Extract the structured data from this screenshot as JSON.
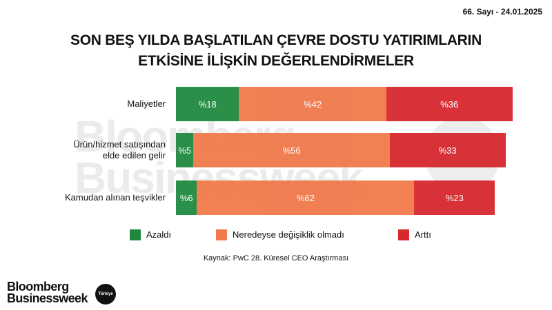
{
  "header": {
    "issue": "66. Sayı - 24.01.2025"
  },
  "chart_data": {
    "type": "stacked-bar-horizontal",
    "title": [
      "SON BEŞ YILDA BAŞLATILAN ÇEVRE DOSTU YATIRIMLARIN",
      "ETKİSİNE İLİŞKİN DEĞERLENDİRMELER"
    ],
    "categories": [
      "Maliyetler",
      "Ürün/hizmet satışından\nelde edilen gelir",
      "Kamudan alınan teşvikler"
    ],
    "xlim": [
      0,
      100
    ],
    "series": [
      {
        "name": "Azaldı",
        "color": "#1f8a3f",
        "values": [
          18,
          5,
          6
        ],
        "value_labels": [
          "%18",
          "%5",
          "%6"
        ]
      },
      {
        "name": "Neredeyse değişiklik olmadı",
        "color": "#f07a4a",
        "values": [
          42,
          56,
          62
        ],
        "value_labels": [
          "%42",
          "%56",
          "%62"
        ]
      },
      {
        "name": "Arttı",
        "color": "#d6282e",
        "values": [
          36,
          33,
          23
        ],
        "value_labels": [
          "%36",
          "%33",
          "%23"
        ]
      }
    ],
    "legend": "bottom",
    "source": "Kaynak: PwC 28. Küresel CEO Araştırması"
  },
  "watermark": {
    "lines": [
      "Bloomberg",
      "Businessweek"
    ],
    "badge": "Türkiye"
  },
  "logo": {
    "lines": [
      "Bloomberg",
      "Businessweek"
    ],
    "badge": "Türkiye"
  }
}
